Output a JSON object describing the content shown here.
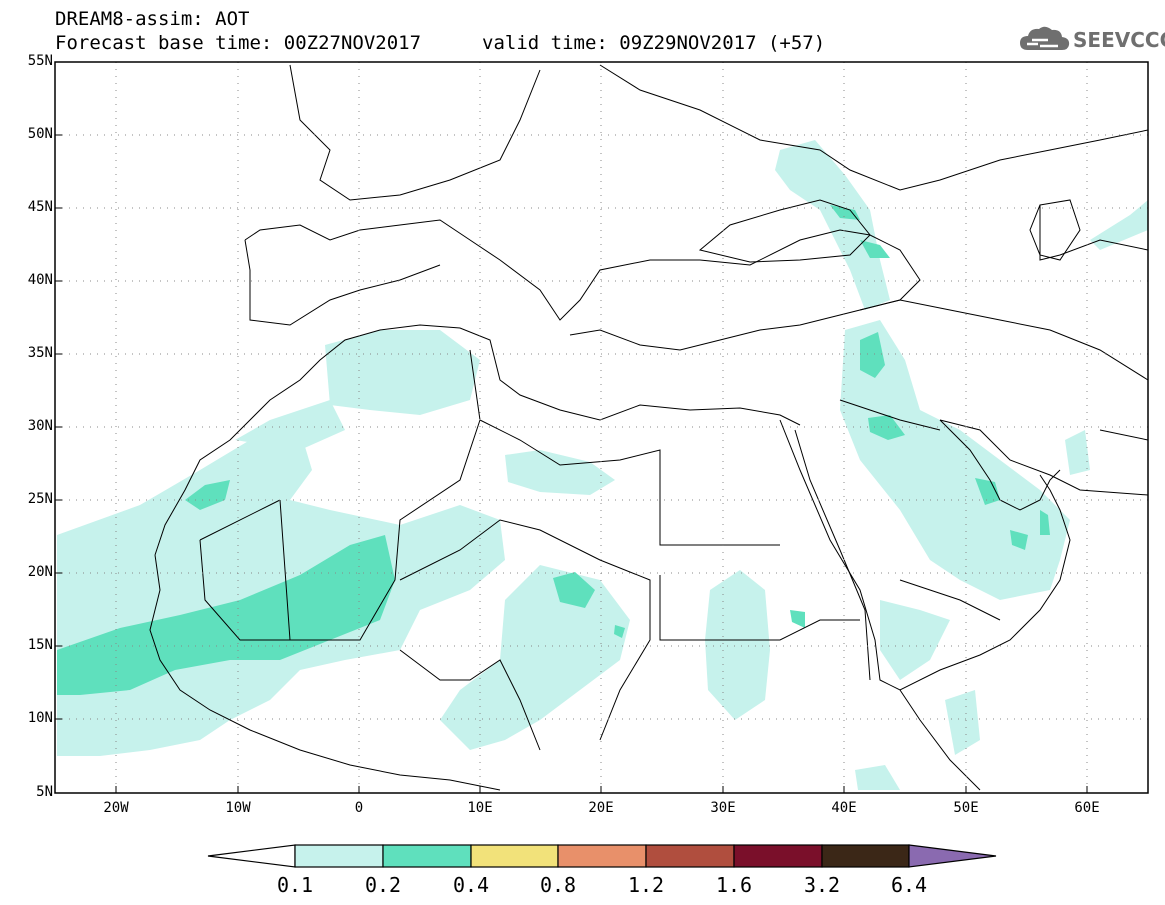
{
  "header": {
    "title": "DREAM8-assim: AOT",
    "base_time": "Forecast base time: 00Z27NOV2017",
    "valid_time": "valid time: 09Z29NOV2017 (+57)",
    "logo_text": "SEEVCCC",
    "logo_icon": "cloud-logo-icon"
  },
  "map": {
    "lat_labels": [
      "55N",
      "50N",
      "45N",
      "40N",
      "35N",
      "30N",
      "25N",
      "20N",
      "15N",
      "10N",
      "5N"
    ],
    "lon_labels": [
      "20W",
      "10W",
      "0",
      "10E",
      "20E",
      "30E",
      "40E",
      "50E",
      "60E"
    ],
    "lat_range": [
      5,
      55
    ],
    "lon_range": [
      -25,
      65
    ],
    "grid": "dotted"
  },
  "colorbar": {
    "levels": [
      "0.1",
      "0.2",
      "0.4",
      "0.8",
      "1.2",
      "1.6",
      "3.2",
      "6.4"
    ],
    "colors": [
      "#ffffff",
      "#c6f2ec",
      "#5fe0bd",
      "#f2e27a",
      "#e8906a",
      "#b04e3e",
      "#7a0f2a",
      "#3b2717",
      "#8a6ab0"
    ]
  },
  "colors": {
    "light_aot": "#c6f2ec",
    "medium_aot": "#5fe0bd",
    "border": "#000000"
  }
}
